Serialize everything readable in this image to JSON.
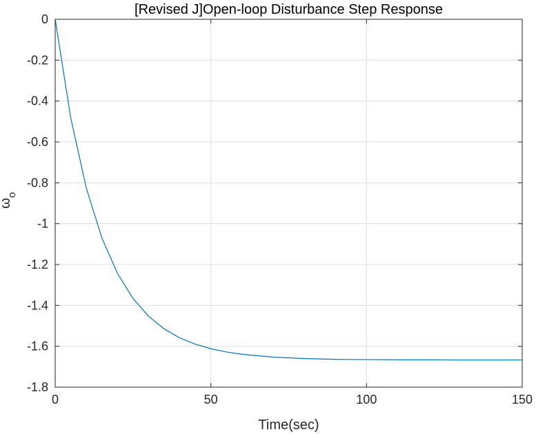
{
  "chart_data": {
    "type": "line",
    "title": "[Revised J]Open-loop Disturbance Step Response",
    "xlabel": "Time(sec)",
    "ylabel_main": "ω",
    "ylabel_sub": "o",
    "xlim": [
      0,
      150
    ],
    "ylim": [
      -1.8,
      0
    ],
    "xticks": [
      0,
      50,
      100,
      150
    ],
    "xtick_labels": [
      "0",
      "50",
      "100",
      "150"
    ],
    "yticks": [
      0,
      -0.2,
      -0.4,
      -0.6,
      -0.8,
      -1,
      -1.2,
      -1.4,
      -1.6,
      -1.8
    ],
    "ytick_labels": [
      "0",
      "-0.2",
      "-0.4",
      "-0.6",
      "-0.8",
      "-1",
      "-1.2",
      "-1.4",
      "-1.6",
      "-1.8"
    ],
    "grid": true,
    "colors": {
      "series": "#0072BD",
      "axes": "#262626",
      "grid": "#dedede"
    },
    "series": [
      {
        "x": [
          0,
          5,
          10,
          15,
          20,
          25,
          30,
          35,
          40,
          45,
          50,
          55,
          60,
          70,
          80,
          90,
          100,
          110,
          120,
          130,
          140,
          150
        ],
        "values": [
          0,
          -0.483,
          -0.826,
          -1.07,
          -1.243,
          -1.366,
          -1.453,
          -1.515,
          -1.559,
          -1.59,
          -1.612,
          -1.628,
          -1.639,
          -1.653,
          -1.66,
          -1.664,
          -1.665,
          -1.666,
          -1.666,
          -1.667,
          -1.667,
          -1.667
        ]
      }
    ]
  }
}
